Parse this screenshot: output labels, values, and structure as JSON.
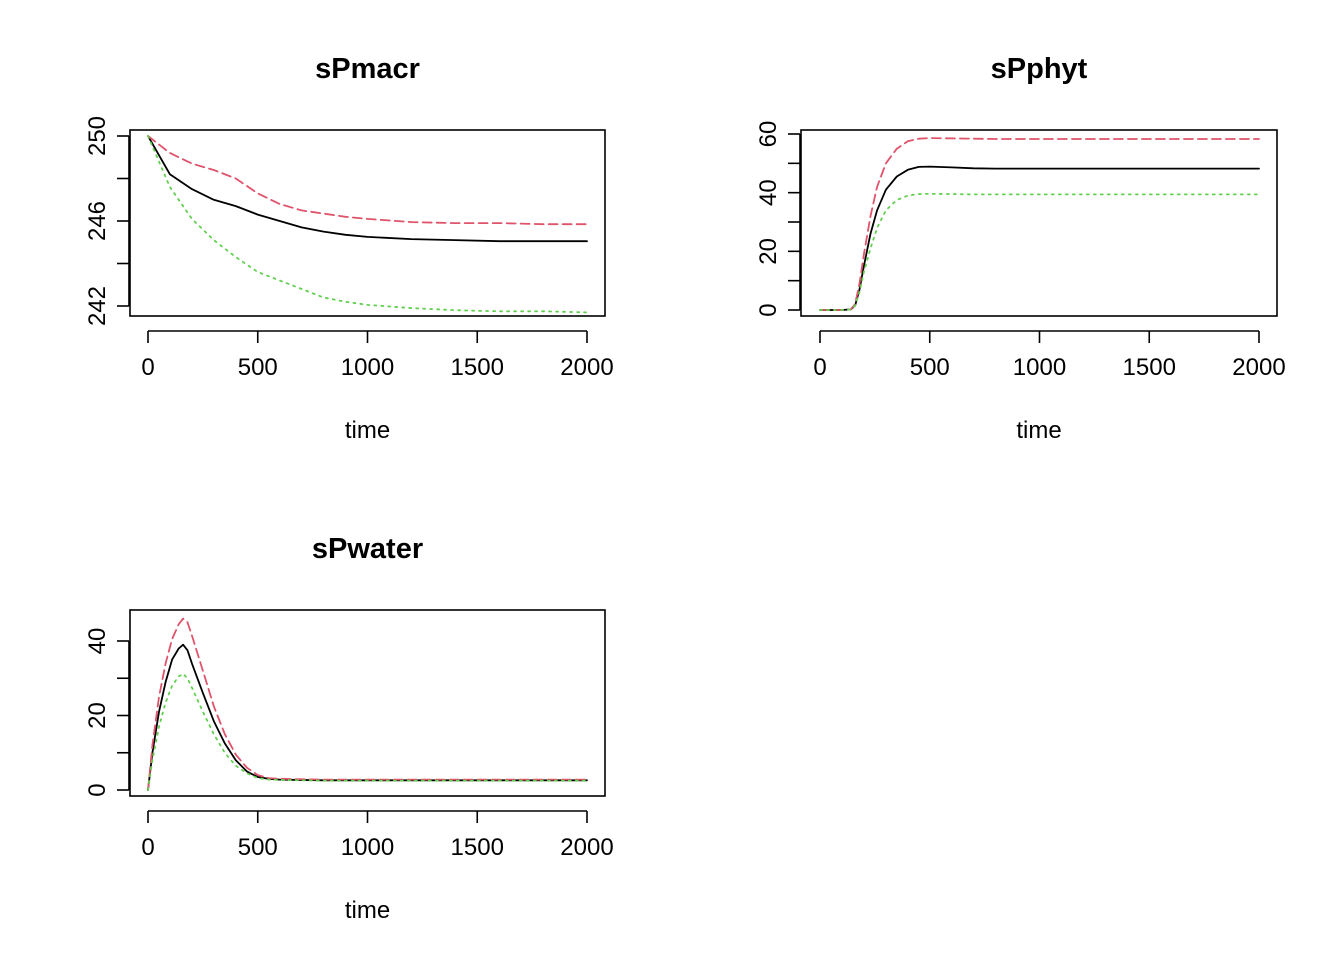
{
  "chart_data": [
    {
      "type": "line",
      "title": "sPmacr",
      "xlabel": "time",
      "ylabel": "",
      "xlim": [
        0,
        2000
      ],
      "ylim": [
        241.5,
        250.3
      ],
      "x_ticks": [
        0,
        500,
        1000,
        1500,
        2000
      ],
      "y_ticks": [
        242,
        244,
        246,
        248,
        250
      ],
      "y_tick_labels": [
        "242",
        "",
        "246",
        "",
        "250"
      ],
      "grid": false,
      "series": [
        {
          "color": "#000000",
          "dash": "solid",
          "x": [
            0,
            100,
            200,
            300,
            400,
            500,
            600,
            700,
            800,
            900,
            1000,
            1200,
            1400,
            1600,
            1800,
            2000
          ],
          "y": [
            250,
            248.2,
            247.5,
            247.0,
            246.7,
            246.3,
            246.0,
            245.7,
            245.5,
            245.35,
            245.25,
            245.15,
            245.1,
            245.05,
            245.05,
            245.05
          ]
        },
        {
          "color": "#DF536B",
          "dash": "dashed",
          "x": [
            0,
            100,
            200,
            300,
            400,
            500,
            600,
            700,
            800,
            900,
            1000,
            1200,
            1400,
            1600,
            1800,
            2000
          ],
          "y": [
            250,
            249.2,
            248.7,
            248.4,
            248.0,
            247.3,
            246.8,
            246.5,
            246.35,
            246.2,
            246.1,
            245.95,
            245.9,
            245.9,
            245.85,
            245.85
          ]
        },
        {
          "color": "#61D04F",
          "dash": "dotted",
          "x": [
            0,
            100,
            200,
            300,
            400,
            500,
            600,
            700,
            800,
            900,
            1000,
            1200,
            1400,
            1600,
            1800,
            2000
          ],
          "y": [
            250,
            247.6,
            246.1,
            245.1,
            244.3,
            243.6,
            243.2,
            242.8,
            242.4,
            242.2,
            242.05,
            241.9,
            241.8,
            241.75,
            241.75,
            241.7
          ]
        }
      ]
    },
    {
      "type": "line",
      "title": "sPphyt",
      "xlabel": "time",
      "ylabel": "",
      "xlim": [
        0,
        2000
      ],
      "ylim": [
        -1,
        61
      ],
      "x_ticks": [
        0,
        500,
        1000,
        1500,
        2000
      ],
      "y_ticks": [
        0,
        10,
        20,
        30,
        40,
        50,
        60
      ],
      "y_tick_labels": [
        "0",
        "",
        "20",
        "",
        "40",
        "",
        "60"
      ],
      "grid": false,
      "series": [
        {
          "color": "#000000",
          "dash": "solid",
          "x": [
            0,
            100,
            140,
            160,
            180,
            200,
            230,
            260,
            300,
            350,
            400,
            450,
            500,
            600,
            700,
            800,
            1000,
            1500,
            2000
          ],
          "y": [
            0,
            0,
            0.2,
            1.5,
            7,
            15,
            26,
            34,
            41,
            45.5,
            47.8,
            48.8,
            48.9,
            48.6,
            48.3,
            48.2,
            48.2,
            48.2,
            48.2
          ]
        },
        {
          "color": "#DF536B",
          "dash": "dashed",
          "x": [
            0,
            100,
            140,
            160,
            180,
            200,
            230,
            260,
            300,
            350,
            400,
            450,
            500,
            600,
            700,
            800,
            1000,
            1500,
            2000
          ],
          "y": [
            0,
            0,
            0.2,
            2,
            9,
            19,
            32,
            42,
            50,
            55,
            57.5,
            58.4,
            58.6,
            58.5,
            58.4,
            58.3,
            58.3,
            58.3,
            58.3
          ]
        },
        {
          "color": "#61D04F",
          "dash": "dotted",
          "x": [
            0,
            100,
            140,
            160,
            180,
            200,
            230,
            260,
            300,
            350,
            400,
            450,
            500,
            600,
            700,
            800,
            1000,
            1500,
            2000
          ],
          "y": [
            0,
            0,
            0.2,
            1.5,
            6,
            13,
            21,
            28,
            34,
            37.5,
            39,
            39.5,
            39.6,
            39.5,
            39.4,
            39.4,
            39.4,
            39.4,
            39.4
          ]
        }
      ]
    },
    {
      "type": "line",
      "title": "sPwater",
      "xlabel": "time",
      "ylabel": "",
      "xlim": [
        0,
        2000
      ],
      "ylim": [
        -1,
        48
      ],
      "x_ticks": [
        0,
        500,
        1000,
        1500,
        2000
      ],
      "y_ticks": [
        0,
        10,
        20,
        30,
        40
      ],
      "y_tick_labels": [
        "0",
        "",
        "20",
        "",
        "40"
      ],
      "grid": false,
      "series": [
        {
          "color": "#000000",
          "dash": "solid",
          "x": [
            0,
            20,
            50,
            80,
            110,
            140,
            160,
            180,
            200,
            250,
            300,
            350,
            400,
            450,
            500,
            550,
            600,
            800,
            1000,
            1500,
            2000
          ],
          "y": [
            0,
            10,
            21,
            29,
            35,
            38,
            39,
            37.5,
            34,
            26,
            18.5,
            12.5,
            8,
            5,
            3.5,
            3,
            2.8,
            2.6,
            2.6,
            2.6,
            2.6
          ]
        },
        {
          "color": "#DF536B",
          "dash": "dashed",
          "x": [
            0,
            20,
            50,
            80,
            110,
            140,
            160,
            180,
            200,
            250,
            300,
            350,
            400,
            450,
            500,
            550,
            600,
            800,
            1000,
            1500,
            2000
          ],
          "y": [
            0,
            12,
            25,
            34,
            40.5,
            44.5,
            46,
            45,
            41.5,
            32,
            22.5,
            15,
            9.5,
            6,
            4,
            3.2,
            3,
            2.8,
            2.8,
            2.8,
            2.8
          ]
        },
        {
          "color": "#61D04F",
          "dash": "dotted",
          "x": [
            0,
            20,
            50,
            80,
            110,
            140,
            160,
            180,
            200,
            250,
            300,
            350,
            400,
            450,
            500,
            550,
            600,
            800,
            1000,
            1500,
            2000
          ],
          "y": [
            0,
            8,
            17,
            23.5,
            28,
            30.5,
            31.2,
            30,
            27.5,
            21,
            15,
            10,
            6.5,
            4.5,
            3.2,
            2.8,
            2.7,
            2.5,
            2.5,
            2.5,
            2.5
          ]
        }
      ]
    }
  ]
}
